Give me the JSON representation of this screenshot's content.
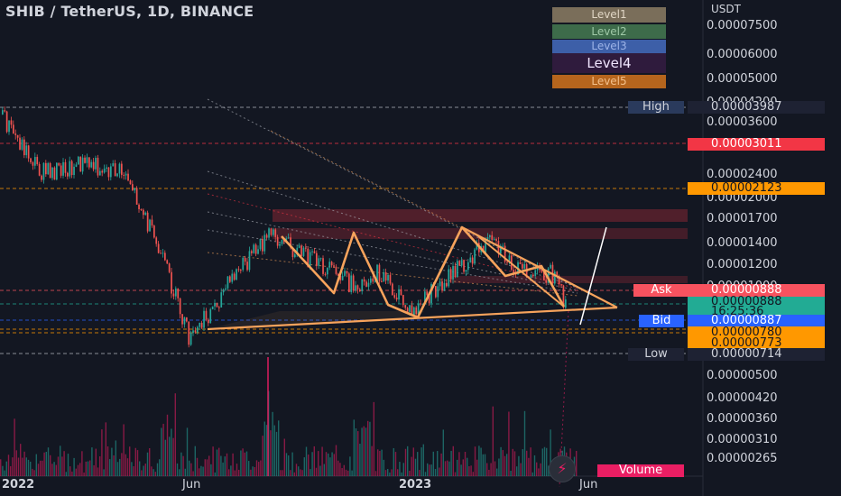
{
  "title": "SHIB / TetherUS, 1D, BINANCE",
  "levels": [
    {
      "label": "Level1",
      "bg": "#7a6e5a",
      "fg": "#e0d6c4"
    },
    {
      "label": "Level2",
      "bg": "#3d6b4a",
      "fg": "#9fc9a7"
    },
    {
      "label": "Level3",
      "bg": "#3d5fa8",
      "fg": "#9db4e8"
    },
    {
      "label": "Level4",
      "bg": "#2f1b3d",
      "fg": "#f1e6ff"
    },
    {
      "label": "Level5",
      "bg": "#b5651d",
      "fg": "#f3c08a"
    }
  ],
  "axis": {
    "unit": "USDT",
    "ticks": [
      "0.00007500",
      "0.00006000",
      "0.00005000",
      "0.00004200",
      "0.00003600",
      "0.00002400",
      "0.00002000",
      "0.00001700",
      "0.00001400",
      "0.00001200",
      "0.00001000",
      "0.00000500",
      "0.00000420",
      "0.00000360",
      "0.00000310",
      "0.00000265"
    ]
  },
  "price_labels": {
    "high": {
      "label": "High",
      "value": "0.00003987"
    },
    "level_red": {
      "value": "0.00003011"
    },
    "level_orange": {
      "value": "0.00002123"
    },
    "ask": {
      "label": "Ask",
      "value": "0.00000888"
    },
    "last": {
      "value": "0.00000888",
      "countdown": "16:25:36"
    },
    "bid": {
      "label": "Bid",
      "value": "0.00000887"
    },
    "lvl_a": {
      "value": "0.00000780"
    },
    "lvl_b": {
      "value": "0.00000773"
    },
    "low": {
      "label": "Low",
      "value": "0.00000714"
    }
  },
  "x_ticks": [
    "2022",
    "Jun",
    "2023",
    "Jun"
  ],
  "volume_label": "Volume",
  "colors": {
    "up": "#26a69a",
    "down": "#ef5350",
    "pattern": "#f7a35c",
    "volume": "#e91e63"
  },
  "chart_data": {
    "type": "candlestick",
    "title": "SHIB / TetherUS, 1D, BINANCE",
    "ylabel": "USDT",
    "scale": "log",
    "ylim": [
      2.6e-06,
      8e-05
    ],
    "key_prices": {
      "high": 3.987e-05,
      "low": 7.14e-06,
      "last": 8.88e-06
    },
    "trend": [
      {
        "date": "2022-01",
        "price": 3.8e-05
      },
      {
        "date": "2022-02",
        "price": 2.4e-05
      },
      {
        "date": "2022-03",
        "price": 2.6e-05
      },
      {
        "date": "2022-04",
        "price": 2.4e-05
      },
      {
        "date": "2022-05",
        "price": 1.1e-05
      },
      {
        "date": "2022-06",
        "price": 7.5e-06
      },
      {
        "date": "2022-07",
        "price": 1.1e-05
      },
      {
        "date": "2022-08",
        "price": 1.5e-05
      },
      {
        "date": "2022-09",
        "price": 1.2e-05
      },
      {
        "date": "2022-10",
        "price": 1e-05
      },
      {
        "date": "2022-11",
        "price": 1.1e-05
      },
      {
        "date": "2022-12",
        "price": 8.5e-06
      },
      {
        "date": "2023-01",
        "price": 1.1e-05
      },
      {
        "date": "2023-02",
        "price": 1.4e-05
      },
      {
        "date": "2023-03",
        "price": 1.1e-05
      },
      {
        "date": "2023-04",
        "price": 1.1e-05
      },
      {
        "date": "2023-05",
        "price": 8.9e-06
      }
    ]
  }
}
